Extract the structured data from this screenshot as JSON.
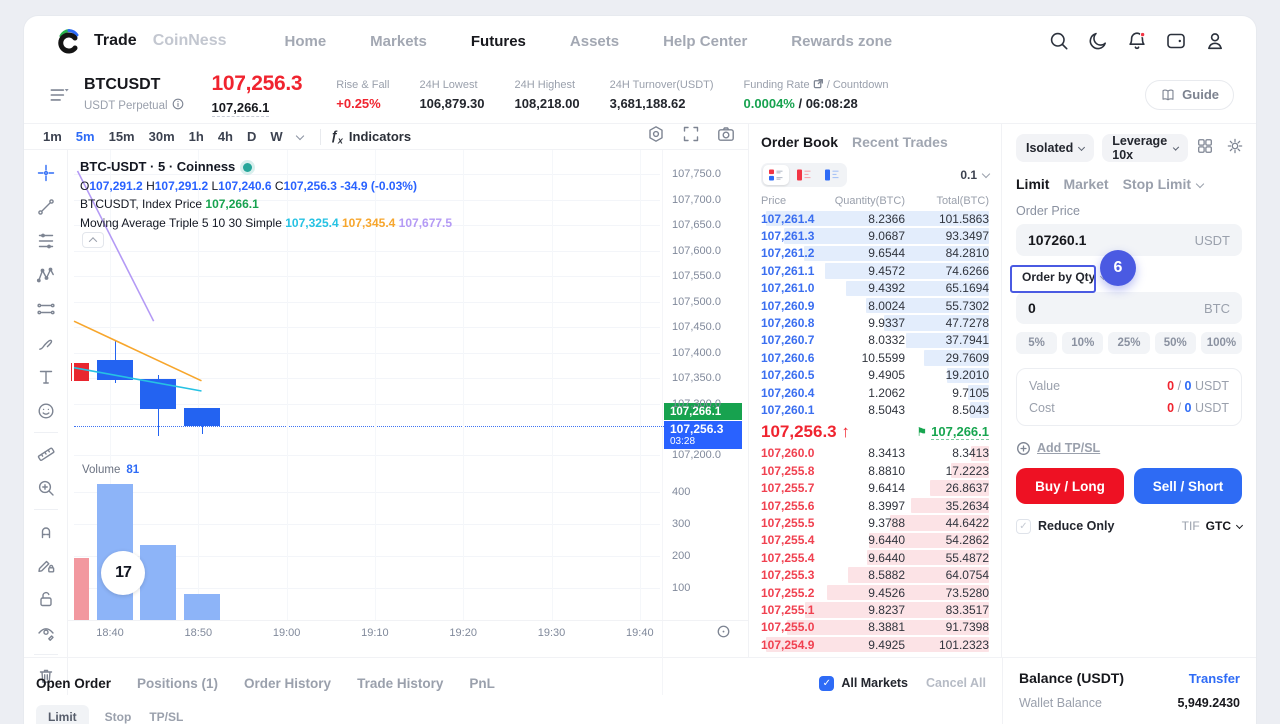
{
  "nav": {
    "brand": "Trade",
    "brand_secondary": "CoinNess",
    "items": [
      {
        "label": "Home",
        "active": false
      },
      {
        "label": "Markets",
        "active": false
      },
      {
        "label": "Futures",
        "active": true
      },
      {
        "label": "Assets",
        "active": false
      },
      {
        "label": "Help Center",
        "active": false
      },
      {
        "label": "Rewards zone",
        "active": false
      }
    ],
    "icons": [
      "search",
      "theme-moon",
      "notifications",
      "wallet",
      "profile"
    ]
  },
  "ticker": {
    "symbol": "BTCUSDT",
    "contract_type": "USDT Perpetual",
    "last_price": "107,256.3",
    "index_price": "107,266.1",
    "stats": [
      {
        "label": "Rise & Fall",
        "value": "+0.25%",
        "accent": "up"
      },
      {
        "label": "24H Lowest",
        "value": "106,879.30"
      },
      {
        "label": "24H Highest",
        "value": "108,218.00"
      },
      {
        "label": "24H Turnover(USDT)",
        "value": "3,681,188.62"
      }
    ],
    "funding": {
      "label_left": "Funding Rate",
      "label_right": "/ Countdown",
      "rate": "0.0004%",
      "countdown": " / 06:08:28"
    },
    "guide_label": "Guide"
  },
  "chart": {
    "timeframes": [
      "1m",
      "5m",
      "15m",
      "30m",
      "1h",
      "4h",
      "D",
      "W"
    ],
    "selected_timeframe": "5m",
    "indicators_label": "Indicators",
    "draw_tools": [
      "crosshair",
      "trend-line",
      "fib-retracement",
      "xabcd-pattern",
      "long-short-position",
      "brush",
      "text",
      "emoji",
      "ruler",
      "zoom-in",
      "magnet",
      "drawing-lock",
      "lock-all-drawings",
      "hide-all-drawings",
      "remove-drawings"
    ],
    "legend": {
      "title": "BTC-USDT · 5 · Coinness",
      "ohlc": {
        "o": "107,291.2",
        "h": "107,291.2",
        "l": "107,240.6",
        "c": "107,256.3",
        "change": "-34.9 (-0.03%)"
      },
      "row2_label": "BTCUSDT, Index Price",
      "row2_value": "107,266.1",
      "row3_label": "Moving Average Triple 5 10 30 Simple",
      "ma_values": [
        "107,325.4",
        "107,345.4",
        "107,677.5"
      ]
    },
    "price_axis": [
      "107,750.0",
      "107,700.0",
      "107,650.0",
      "107,600.0",
      "107,550.0",
      "107,500.0",
      "107,450.0",
      "107,400.0",
      "107,350.0",
      "107,300.0",
      "107,200.0"
    ],
    "volume_axis": [
      400,
      300,
      200,
      100
    ],
    "time_axis": [
      "18:40",
      "18:50",
      "19:00",
      "19:10",
      "19:20",
      "19:30",
      "19:40"
    ],
    "volume_title": "Volume",
    "volume_value": "81",
    "badges": {
      "index": "107,266.1",
      "last": "107,256.3",
      "countdown": "03:28"
    }
  },
  "chart_data": {
    "type": "candlestick",
    "title": "BTC-USDT · 5 · Coinness",
    "interval": "5m",
    "ylim": [
      107200,
      107775
    ],
    "grid": true,
    "x": [
      "18:35",
      "18:40",
      "18:45",
      "18:50"
    ],
    "candles": [
      {
        "time": "18:35",
        "open": 107345,
        "high": 107380,
        "low": 107345,
        "close": 107380,
        "volume": 195,
        "direction": "up"
      },
      {
        "time": "18:40",
        "open": 107386,
        "high": 107425,
        "low": 107341,
        "close": 107347,
        "volume": 426,
        "direction": "down"
      },
      {
        "time": "18:45",
        "open": 107349,
        "high": 107357,
        "low": 107237,
        "close": 107290,
        "volume": 234,
        "direction": "down"
      },
      {
        "time": "18:50",
        "open": 107291.2,
        "high": 107291.2,
        "low": 107240.6,
        "close": 107256.3,
        "volume": 81,
        "direction": "down"
      }
    ],
    "last_price": 107256.3,
    "index_price": 107266.1,
    "moving_averages": [
      {
        "name": "MA5",
        "color": "#26c2e3",
        "value": 107325.4,
        "segment": [
          [
            0,
            107371
          ],
          [
            3,
            107325.4
          ]
        ]
      },
      {
        "name": "MA10",
        "color": "#f7a62c",
        "value": 107345.4,
        "segment": [
          [
            0,
            107462
          ],
          [
            3,
            107345.4
          ]
        ]
      },
      {
        "name": "MA30",
        "color": "#b49af5",
        "value": 107677.5,
        "segment": [
          [
            0.15,
            107756
          ],
          [
            1.9,
            107462
          ]
        ]
      }
    ],
    "volume_ylim": [
      0,
      500
    ]
  },
  "order_book": {
    "tabs": [
      "Order Book",
      "Recent Trades"
    ],
    "active_tab": "Order Book",
    "precision": "0.1",
    "columns": [
      "Price",
      "Quantity(BTC)",
      "Total(BTC)"
    ],
    "asks": [
      {
        "p": "107,261.4",
        "q": "8.2366",
        "t": "101.5863",
        "d": 100
      },
      {
        "p": "107,261.3",
        "q": "9.0687",
        "t": "93.3497",
        "d": 91.9
      },
      {
        "p": "107,261.2",
        "q": "9.6544",
        "t": "84.2810",
        "d": 83.0
      },
      {
        "p": "107,261.1",
        "q": "9.4572",
        "t": "74.6266",
        "d": 73.5
      },
      {
        "p": "107,261.0",
        "q": "9.4392",
        "t": "65.1694",
        "d": 64.2
      },
      {
        "p": "107,260.9",
        "q": "8.0024",
        "t": "55.7302",
        "d": 54.9
      },
      {
        "p": "107,260.8",
        "q": "9.9337",
        "t": "47.7278",
        "d": 47.0
      },
      {
        "p": "107,260.7",
        "q": "8.0332",
        "t": "37.7941",
        "d": 37.2
      },
      {
        "p": "107,260.6",
        "q": "10.5599",
        "t": "29.7609",
        "d": 29.3
      },
      {
        "p": "107,260.5",
        "q": "9.4905",
        "t": "19.2010",
        "d": 18.9
      },
      {
        "p": "107,260.4",
        "q": "1.2062",
        "t": "9.7105",
        "d": 9.6
      },
      {
        "p": "107,260.1",
        "q": "8.5043",
        "t": "8.5043",
        "d": 8.4
      }
    ],
    "last": {
      "price": "107,256.3",
      "direction": "up",
      "index_price": "107,266.1"
    },
    "bids": [
      {
        "p": "107,260.0",
        "q": "8.3413",
        "t": "8.3413",
        "d": 8.2
      },
      {
        "p": "107,255.8",
        "q": "8.8810",
        "t": "17.2223",
        "d": 17.0
      },
      {
        "p": "107,255.7",
        "q": "9.6414",
        "t": "26.8637",
        "d": 26.5
      },
      {
        "p": "107,255.6",
        "q": "8.3997",
        "t": "35.2634",
        "d": 34.8
      },
      {
        "p": "107,255.5",
        "q": "9.3788",
        "t": "44.6422",
        "d": 44.1
      },
      {
        "p": "107,255.4",
        "q": "9.6440",
        "t": "54.2862",
        "d": 53.6
      },
      {
        "p": "107,255.4",
        "q": "9.6440",
        "t": "55.4872",
        "d": 54.8
      },
      {
        "p": "107,255.3",
        "q": "8.5882",
        "t": "64.0754",
        "d": 63.3
      },
      {
        "p": "107,255.2",
        "q": "9.4526",
        "t": "73.5280",
        "d": 72.6
      },
      {
        "p": "107,255.1",
        "q": "9.8237",
        "t": "83.3517",
        "d": 82.3
      },
      {
        "p": "107,255.0",
        "q": "8.3881",
        "t": "91.7398",
        "d": 90.6
      },
      {
        "p": "107,254.9",
        "q": "9.4925",
        "t": "101.2323",
        "d": 100
      }
    ]
  },
  "trade_panel": {
    "margin_mode": "Isolated",
    "leverage": "Leverage 10x",
    "tabs": [
      "Limit",
      "Market",
      "Stop Limit"
    ],
    "active_tab": "Limit",
    "order_price_label": "Order Price",
    "order_price": "107260.1",
    "order_price_unit": "USDT",
    "qty_mode": "Order by Qty",
    "qty_value": "0",
    "qty_unit": "BTC",
    "percents": [
      "5%",
      "10%",
      "25%",
      "50%",
      "100%"
    ],
    "value_label": "Value",
    "cost_label": "Cost",
    "value_long": "0",
    "value_short": "0",
    "cost_long": "0",
    "cost_short": "0",
    "vc_unit": "USDT",
    "tpsl_label": "Add TP/SL",
    "buy_label": "Buy / Long",
    "sell_label": "Sell / Short",
    "reduce_only": "Reduce Only",
    "tif_label": "TIF",
    "tif_value": "GTC"
  },
  "annotation": {
    "badge": "6"
  },
  "bottom": {
    "tabs": [
      "Open Order",
      "Positions (1)",
      "Order History",
      "Trade History",
      "PnL"
    ],
    "active_tab": "Open Order",
    "all_markets": "All Markets",
    "cancel_all": "Cancel All",
    "sub_tabs": [
      "Limit",
      "Stop",
      "TP/SL"
    ]
  },
  "balance": {
    "title": "Balance (USDT)",
    "transfer": "Transfer",
    "wallet_label": "Wallet Balance",
    "wallet_value": "5,949.2430"
  }
}
